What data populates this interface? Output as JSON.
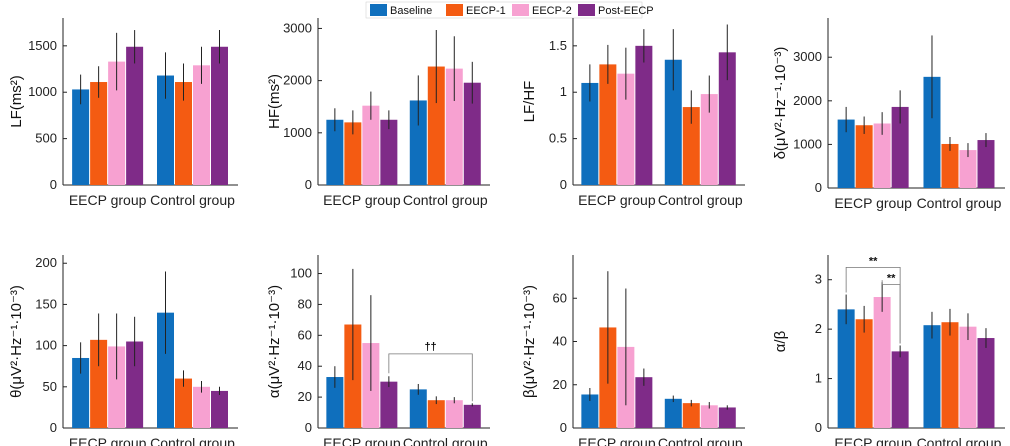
{
  "legend": [
    {
      "name": "Baseline",
      "color": "#0f6fbd"
    },
    {
      "name": "EECP-1",
      "color": "#f45b12"
    },
    {
      "name": "EECP-2",
      "color": "#f7a1d1"
    },
    {
      "name": "Post-EECP",
      "color": "#7f2b88"
    }
  ],
  "chart_data": [
    {
      "type": "bar",
      "title": "",
      "ylabel": "LF(ms²)",
      "categories": [
        "EECP group",
        "Control group"
      ],
      "ylim": [
        0,
        1800
      ],
      "yticks": [
        0,
        500,
        1000,
        1500
      ],
      "series": [
        {
          "name": "Baseline",
          "values": [
            1030,
            1180
          ],
          "errors": [
            160,
            250
          ]
        },
        {
          "name": "EECP-1",
          "values": [
            1110,
            1110
          ],
          "errors": [
            170,
            200
          ]
        },
        {
          "name": "EECP-2",
          "values": [
            1330,
            1290
          ],
          "errors": [
            310,
            200
          ]
        },
        {
          "name": "Post-EECP",
          "values": [
            1490,
            1490
          ],
          "errors": [
            180,
            180
          ]
        }
      ]
    },
    {
      "type": "bar",
      "title": "",
      "ylabel": "HF(ms²)",
      "categories": [
        "EECP group",
        "Control group"
      ],
      "ylim": [
        0,
        3200
      ],
      "yticks": [
        0,
        1000,
        2000,
        3000
      ],
      "series": [
        {
          "name": "Baseline",
          "values": [
            1250,
            1620
          ],
          "errors": [
            220,
            480
          ]
        },
        {
          "name": "EECP-1",
          "values": [
            1200,
            2270
          ],
          "errors": [
            230,
            700
          ]
        },
        {
          "name": "EECP-2",
          "values": [
            1520,
            2230
          ],
          "errors": [
            270,
            620
          ]
        },
        {
          "name": "Post-EECP",
          "values": [
            1250,
            1960
          ],
          "errors": [
            180,
            400
          ]
        }
      ]
    },
    {
      "type": "bar",
      "title": "",
      "ylabel": "LF/HF",
      "categories": [
        "EECP group",
        "Control group"
      ],
      "ylim": [
        0,
        1.8
      ],
      "yticks": [
        0,
        0.5,
        1,
        1.5
      ],
      "series": [
        {
          "name": "Baseline",
          "values": [
            1.1,
            1.35
          ],
          "errors": [
            0.2,
            0.33
          ]
        },
        {
          "name": "EECP-1",
          "values": [
            1.3,
            0.84
          ],
          "errors": [
            0.21,
            0.18
          ]
        },
        {
          "name": "EECP-2",
          "values": [
            1.2,
            0.98
          ],
          "errors": [
            0.28,
            0.2
          ]
        },
        {
          "name": "Post-EECP",
          "values": [
            1.5,
            1.43
          ],
          "errors": [
            0.18,
            0.3
          ]
        }
      ]
    },
    {
      "type": "bar",
      "title": "",
      "ylabel": "δ(μV²·Hz⁻¹·10⁻³)",
      "categories": [
        "EECP group",
        "Control group"
      ],
      "ylim": [
        0,
        3900
      ],
      "yticks": [
        0,
        1000,
        2000,
        3000
      ],
      "series": [
        {
          "name": "Baseline",
          "values": [
            1570,
            2550
          ],
          "errors": [
            290,
            950
          ]
        },
        {
          "name": "EECP-1",
          "values": [
            1440,
            1010
          ],
          "errors": [
            200,
            160
          ]
        },
        {
          "name": "EECP-2",
          "values": [
            1480,
            870
          ],
          "errors": [
            260,
            160
          ]
        },
        {
          "name": "Post-EECP",
          "values": [
            1860,
            1100
          ],
          "errors": [
            380,
            160
          ]
        }
      ]
    },
    {
      "type": "bar",
      "title": "",
      "ylabel": "θ(μV²·Hz⁻¹·10⁻³)",
      "categories": [
        "EECP group",
        "Control group"
      ],
      "ylim": [
        0,
        210
      ],
      "yticks": [
        0,
        50,
        100,
        150,
        200
      ],
      "series": [
        {
          "name": "Baseline",
          "values": [
            85,
            140
          ],
          "errors": [
            19,
            50
          ]
        },
        {
          "name": "EECP-1",
          "values": [
            107,
            60
          ],
          "errors": [
            32,
            10
          ]
        },
        {
          "name": "EECP-2",
          "values": [
            99,
            50
          ],
          "errors": [
            40,
            7
          ]
        },
        {
          "name": "Post-EECP",
          "values": [
            105,
            45
          ],
          "errors": [
            30,
            5
          ]
        }
      ]
    },
    {
      "type": "bar",
      "title": "",
      "ylabel": "α(μV²·Hz⁻¹·10⁻³)",
      "categories": [
        "EECP group",
        "Control group"
      ],
      "ylim": [
        0,
        112
      ],
      "yticks": [
        0,
        20,
        40,
        60,
        80,
        100
      ],
      "series": [
        {
          "name": "Baseline",
          "values": [
            33,
            25
          ],
          "errors": [
            7,
            3.5
          ]
        },
        {
          "name": "EECP-1",
          "values": [
            67,
            18
          ],
          "errors": [
            36,
            2.5
          ]
        },
        {
          "name": "EECP-2",
          "values": [
            55,
            18
          ],
          "errors": [
            31,
            2
          ]
        },
        {
          "name": "Post-EECP",
          "values": [
            30,
            15
          ],
          "errors": [
            3.5,
            1
          ]
        }
      ],
      "annotations": [
        {
          "text": "††"
        }
      ]
    },
    {
      "type": "bar",
      "title": "",
      "ylabel": "β(μV²·Hz⁻¹·10⁻³)",
      "categories": [
        "EECP group",
        "Control group"
      ],
      "ylim": [
        0,
        80
      ],
      "yticks": [
        0,
        20,
        40,
        60
      ],
      "series": [
        {
          "name": "Baseline",
          "values": [
            15.5,
            13.5
          ],
          "errors": [
            3,
            1.5
          ]
        },
        {
          "name": "EECP-1",
          "values": [
            46.5,
            11.5
          ],
          "errors": [
            26,
            1.5
          ]
        },
        {
          "name": "EECP-2",
          "values": [
            37.5,
            10.5
          ],
          "errors": [
            27,
            1.5
          ]
        },
        {
          "name": "Post-EECP",
          "values": [
            23.5,
            9.5
          ],
          "errors": [
            4,
            1
          ]
        }
      ]
    },
    {
      "type": "bar",
      "title": "",
      "ylabel": "α/β",
      "categories": [
        "EECP group",
        "Control group"
      ],
      "ylim": [
        0,
        3.5
      ],
      "yticks": [
        0,
        1,
        2,
        3
      ],
      "series": [
        {
          "name": "Baseline",
          "values": [
            2.4,
            2.08
          ],
          "errors": [
            0.3,
            0.27
          ]
        },
        {
          "name": "EECP-1",
          "values": [
            2.2,
            2.14
          ],
          "errors": [
            0.27,
            0.27
          ]
        },
        {
          "name": "EECP-2",
          "values": [
            2.65,
            2.05
          ],
          "errors": [
            0.3,
            0.27
          ]
        },
        {
          "name": "Post-EECP",
          "values": [
            1.55,
            1.82
          ],
          "errors": [
            0.12,
            0.2
          ]
        }
      ],
      "annotations": [
        {
          "text": "**"
        },
        {
          "text": "**"
        }
      ]
    }
  ]
}
